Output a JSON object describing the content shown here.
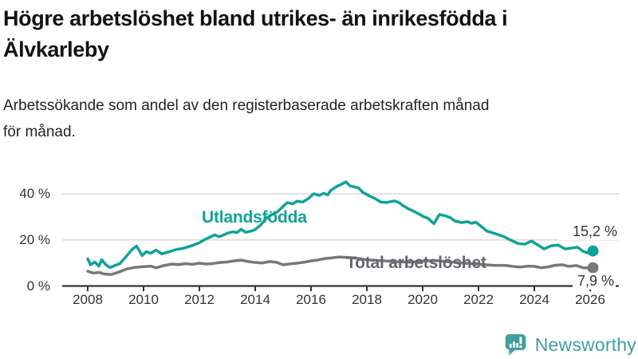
{
  "header": {
    "title_lines": [
      "Högre arbetslöshet bland utrikes- än inrikesfödda i",
      "Älvkarleby"
    ],
    "subtitle_lines": [
      "Arbetssökande som andel av den registerbaserade arbetskraften månad",
      "för månad."
    ]
  },
  "chart_data": {
    "type": "line",
    "unit": "%",
    "grid": "horizontal",
    "xlim": [
      2007.1,
      2027.0
    ],
    "ylim": [
      0,
      48
    ],
    "x_ticks": [
      2008,
      2010,
      2012,
      2014,
      2016,
      2018,
      2020,
      2022,
      2024,
      2026
    ],
    "x_tick_labels": [
      "2008",
      "2010",
      "2012",
      "2014",
      "2016",
      "2018",
      "2020",
      "2022",
      "2024",
      "2026"
    ],
    "y_ticks": [
      0,
      20,
      40
    ],
    "y_tick_labels": [
      "0 %",
      "20 %",
      "40 %"
    ],
    "series": [
      {
        "name": "Utlandsfödda",
        "color": "#10a298",
        "end_label": "15,2 %",
        "end_value": 15.2,
        "points": [
          [
            2008.0,
            11.8
          ],
          [
            2008.1,
            9.2
          ],
          [
            2008.25,
            10.4
          ],
          [
            2008.4,
            8.6
          ],
          [
            2008.5,
            11.4
          ],
          [
            2008.65,
            9.2
          ],
          [
            2008.8,
            8.0
          ],
          [
            2009.0,
            9.0
          ],
          [
            2009.15,
            9.7
          ],
          [
            2009.4,
            13.1
          ],
          [
            2009.6,
            16.0
          ],
          [
            2009.75,
            17.3
          ],
          [
            2009.95,
            13.2
          ],
          [
            2010.1,
            14.9
          ],
          [
            2010.25,
            14.2
          ],
          [
            2010.45,
            15.6
          ],
          [
            2010.65,
            13.9
          ],
          [
            2010.9,
            14.8
          ],
          [
            2011.2,
            15.9
          ],
          [
            2011.4,
            16.3
          ],
          [
            2011.6,
            17.0
          ],
          [
            2011.8,
            17.8
          ],
          [
            2012.0,
            18.8
          ],
          [
            2012.2,
            20.2
          ],
          [
            2012.4,
            21.3
          ],
          [
            2012.55,
            22.2
          ],
          [
            2012.7,
            21.4
          ],
          [
            2012.85,
            22.0
          ],
          [
            2013.0,
            22.9
          ],
          [
            2013.2,
            23.5
          ],
          [
            2013.35,
            23.2
          ],
          [
            2013.5,
            24.6
          ],
          [
            2013.65,
            23.3
          ],
          [
            2013.85,
            23.8
          ],
          [
            2014.0,
            24.5
          ],
          [
            2014.2,
            26.5
          ],
          [
            2014.4,
            29.4
          ],
          [
            2014.6,
            31.0
          ],
          [
            2014.8,
            32.2
          ],
          [
            2015.0,
            34.5
          ],
          [
            2015.15,
            36.2
          ],
          [
            2015.35,
            35.6
          ],
          [
            2015.5,
            36.8
          ],
          [
            2015.7,
            36.4
          ],
          [
            2015.9,
            37.9
          ],
          [
            2016.0,
            39.0
          ],
          [
            2016.1,
            40.0
          ],
          [
            2016.3,
            39.3
          ],
          [
            2016.45,
            40.2
          ],
          [
            2016.6,
            39.5
          ],
          [
            2016.7,
            41.4
          ],
          [
            2016.9,
            43.0
          ],
          [
            2017.1,
            44.2
          ],
          [
            2017.25,
            45.2
          ],
          [
            2017.4,
            43.4
          ],
          [
            2017.55,
            43.0
          ],
          [
            2017.7,
            42.6
          ],
          [
            2017.85,
            40.7
          ],
          [
            2018.1,
            39.0
          ],
          [
            2018.3,
            37.9
          ],
          [
            2018.5,
            36.4
          ],
          [
            2018.7,
            36.2
          ],
          [
            2018.85,
            36.6
          ],
          [
            2019.0,
            36.9
          ],
          [
            2019.15,
            36.2
          ],
          [
            2019.3,
            34.8
          ],
          [
            2019.5,
            33.4
          ],
          [
            2019.7,
            32.3
          ],
          [
            2019.9,
            31.0
          ],
          [
            2020.05,
            30.0
          ],
          [
            2020.2,
            29.3
          ],
          [
            2020.4,
            27.0
          ],
          [
            2020.6,
            31.0
          ],
          [
            2020.8,
            30.5
          ],
          [
            2021.0,
            29.6
          ],
          [
            2021.15,
            28.2
          ],
          [
            2021.4,
            27.5
          ],
          [
            2021.6,
            27.9
          ],
          [
            2021.75,
            27.2
          ],
          [
            2021.9,
            27.7
          ],
          [
            2022.1,
            25.8
          ],
          [
            2022.3,
            23.8
          ],
          [
            2022.55,
            22.9
          ],
          [
            2022.9,
            21.5
          ],
          [
            2023.1,
            20.2
          ],
          [
            2023.4,
            18.5
          ],
          [
            2023.65,
            18.1
          ],
          [
            2023.9,
            19.5
          ],
          [
            2024.1,
            18.0
          ],
          [
            2024.35,
            16.1
          ],
          [
            2024.6,
            17.4
          ],
          [
            2024.85,
            17.8
          ],
          [
            2025.1,
            16.1
          ],
          [
            2025.3,
            16.4
          ],
          [
            2025.55,
            16.8
          ],
          [
            2025.75,
            15.0
          ],
          [
            2025.9,
            14.4
          ],
          [
            2026.1,
            15.2
          ]
        ]
      },
      {
        "name": "Total arbetslöshet",
        "color": "#77777d",
        "end_label": "7,9 %",
        "end_value": 7.9,
        "points": [
          [
            2008.0,
            6.4
          ],
          [
            2008.2,
            5.6
          ],
          [
            2008.4,
            5.9
          ],
          [
            2008.6,
            5.2
          ],
          [
            2008.85,
            5.0
          ],
          [
            2009.1,
            6.0
          ],
          [
            2009.4,
            7.4
          ],
          [
            2009.7,
            8.1
          ],
          [
            2010.0,
            8.4
          ],
          [
            2010.25,
            8.6
          ],
          [
            2010.45,
            7.9
          ],
          [
            2010.7,
            8.8
          ],
          [
            2011.0,
            9.5
          ],
          [
            2011.25,
            9.3
          ],
          [
            2011.5,
            9.7
          ],
          [
            2011.75,
            9.4
          ],
          [
            2012.0,
            9.9
          ],
          [
            2012.25,
            9.5
          ],
          [
            2012.5,
            9.8
          ],
          [
            2012.75,
            10.2
          ],
          [
            2013.0,
            10.4
          ],
          [
            2013.3,
            11.0
          ],
          [
            2013.5,
            11.2
          ],
          [
            2013.75,
            10.6
          ],
          [
            2014.0,
            10.2
          ],
          [
            2014.25,
            10.0
          ],
          [
            2014.5,
            10.6
          ],
          [
            2014.75,
            10.3
          ],
          [
            2015.0,
            9.2
          ],
          [
            2015.25,
            9.6
          ],
          [
            2015.5,
            9.9
          ],
          [
            2015.75,
            10.3
          ],
          [
            2016.0,
            10.9
          ],
          [
            2016.25,
            11.3
          ],
          [
            2016.5,
            11.9
          ],
          [
            2016.75,
            12.2
          ],
          [
            2017.0,
            12.6
          ],
          [
            2017.3,
            12.4
          ],
          [
            2017.6,
            12.1
          ],
          [
            2018.0,
            11.4
          ],
          [
            2018.5,
            11.0
          ],
          [
            2019.0,
            10.6
          ],
          [
            2019.5,
            10.3
          ],
          [
            2020.0,
            10.8
          ],
          [
            2020.5,
            11.0
          ],
          [
            2021.0,
            10.4
          ],
          [
            2021.5,
            9.9
          ],
          [
            2022.0,
            9.4
          ],
          [
            2022.5,
            9.0
          ],
          [
            2023.0,
            8.9
          ],
          [
            2023.3,
            8.4
          ],
          [
            2023.5,
            8.2
          ],
          [
            2023.75,
            8.6
          ],
          [
            2024.0,
            8.5
          ],
          [
            2024.25,
            7.9
          ],
          [
            2024.5,
            8.3
          ],
          [
            2024.75,
            9.0
          ],
          [
            2025.0,
            9.2
          ],
          [
            2025.25,
            8.5
          ],
          [
            2025.5,
            8.9
          ],
          [
            2025.75,
            7.9
          ],
          [
            2026.1,
            7.9
          ]
        ]
      }
    ],
    "style": {
      "gridline_color": "#d9d9d9",
      "axis_color": "#333333",
      "tick_label_color": "#333333"
    }
  },
  "footer": {
    "brand": "Newsworthy",
    "brand_color": "#3f9f9c"
  }
}
